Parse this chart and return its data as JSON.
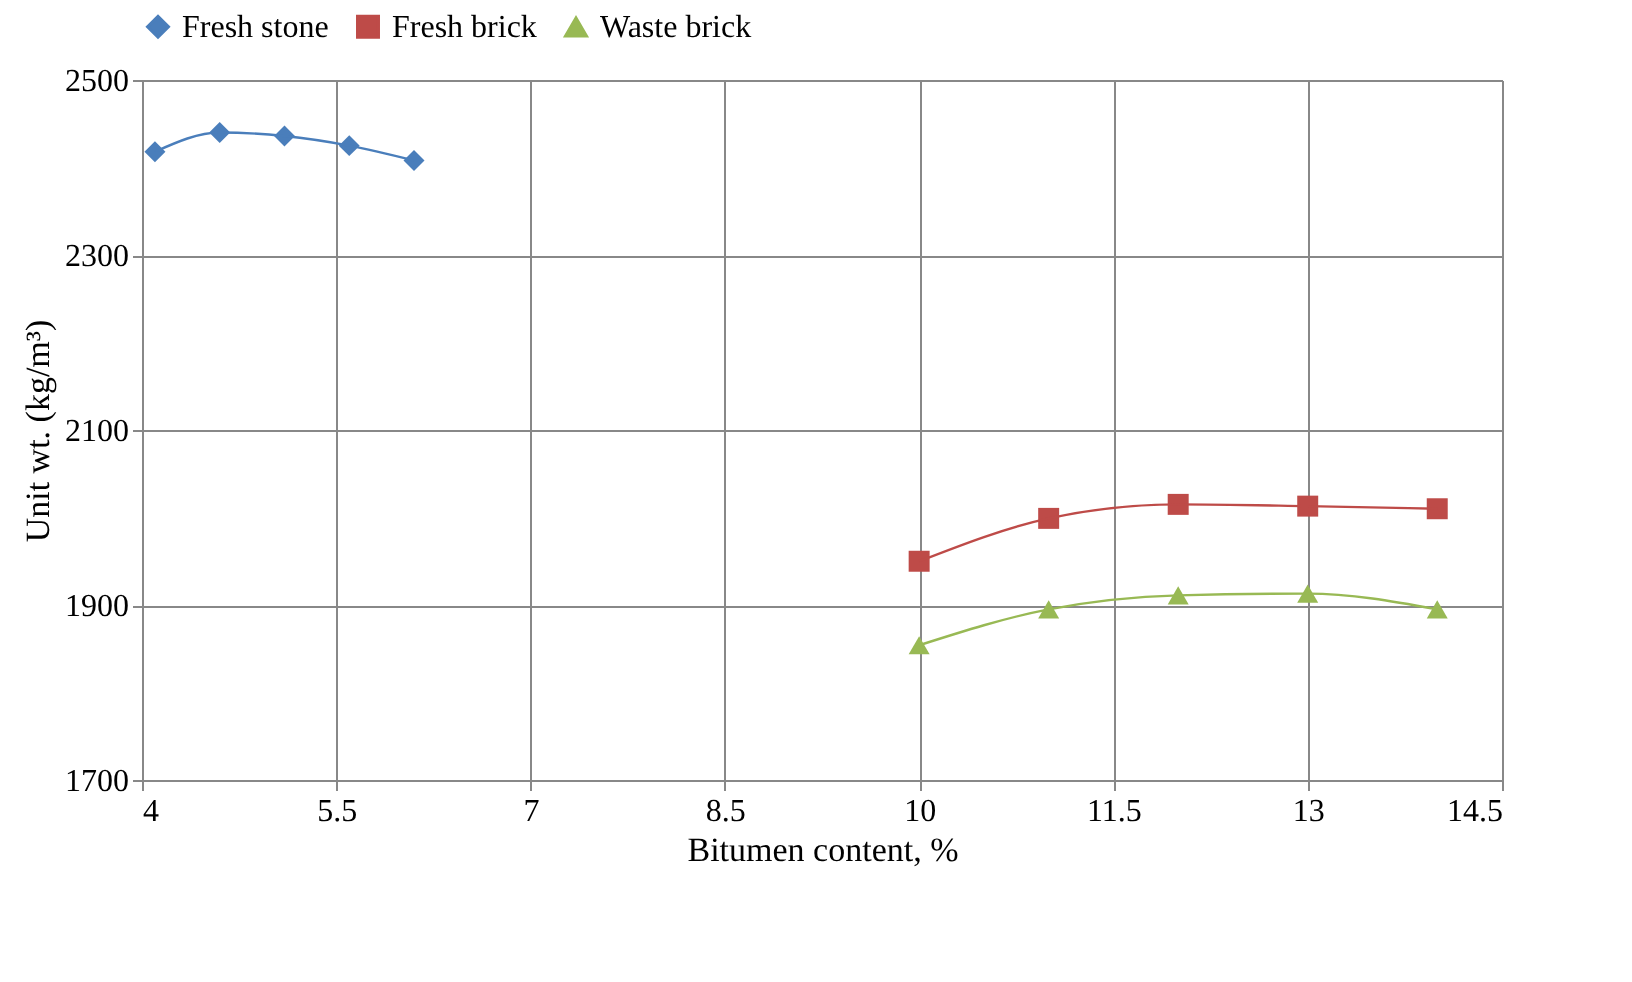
{
  "chart_data": {
    "type": "line",
    "xlabel": "Bitumen content, %",
    "ylabel": "Unit wt. (kg/m³)",
    "xlim": [
      4,
      14.5
    ],
    "xticks": [
      4,
      5.5,
      7,
      8.5,
      10,
      11.5,
      13,
      14.5
    ],
    "ylim": [
      1700,
      2500
    ],
    "yticks": [
      1700,
      1900,
      2100,
      2300,
      2500
    ],
    "grid": true,
    "legend": "top",
    "series": [
      {
        "name": "Fresh stone",
        "color": "#4a7ebb",
        "marker": "diamond",
        "x": [
          4.1,
          4.6,
          5.1,
          5.6,
          6.1
        ],
        "values": [
          2418,
          2440,
          2436,
          2425,
          2408
        ]
      },
      {
        "name": "Fresh brick",
        "color": "#be4b48",
        "marker": "square",
        "x": [
          10,
          11,
          12,
          13,
          14
        ],
        "values": [
          1950,
          1999,
          2015,
          2013,
          2010
        ]
      },
      {
        "name": "Waste brick",
        "color": "#98b954",
        "marker": "triangle",
        "x": [
          10,
          11,
          12,
          13,
          14
        ],
        "values": [
          1854,
          1895,
          1911,
          1913,
          1895
        ]
      }
    ]
  }
}
